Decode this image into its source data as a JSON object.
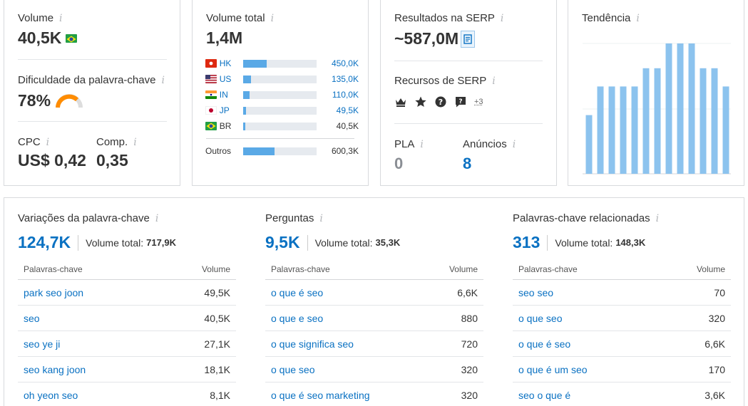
{
  "volume": {
    "label": "Volume",
    "value": "40,5K"
  },
  "kd": {
    "label": "Dificuldade da palavra-chave",
    "value": "78%"
  },
  "cpc": {
    "label": "CPC",
    "value": "US$ 0,42"
  },
  "comp": {
    "label": "Comp.",
    "value": "0,35"
  },
  "total": {
    "label": "Volume total",
    "value": "1,4M",
    "countries": [
      {
        "code": "HK",
        "value": "450,0K",
        "share": 0.32,
        "linked": true
      },
      {
        "code": "US",
        "value": "135,0K",
        "share": 0.1,
        "linked": true
      },
      {
        "code": "IN",
        "value": "110,0K",
        "share": 0.08,
        "linked": true
      },
      {
        "code": "JP",
        "value": "49,5K",
        "share": 0.035,
        "linked": true
      },
      {
        "code": "BR",
        "value": "40,5K",
        "share": 0.03,
        "linked": false
      }
    ],
    "others": {
      "label": "Outros",
      "value": "600,3K",
      "share": 0.43
    }
  },
  "serp": {
    "label": "Resultados na SERP",
    "value": "~587,0M",
    "features_label": "Recursos de SERP",
    "features_more": "+3",
    "pla_label": "PLA",
    "pla_value": "0",
    "ads_label": "Anúncios",
    "ads_value": "8"
  },
  "trend": {
    "label": "Tendência",
    "values": [
      0.45,
      0.67,
      0.67,
      0.67,
      0.67,
      0.81,
      0.81,
      1.0,
      1.0,
      1.0,
      0.81,
      0.81,
      0.67
    ]
  },
  "variations": {
    "title": "Variações da palavra-chave",
    "count": "124,7K",
    "total_label": "Volume total:",
    "total_value": "717,9K",
    "col_kw": "Palavras-chave",
    "col_vol": "Volume",
    "rows": [
      {
        "kw": "park seo joon",
        "vol": "49,5K"
      },
      {
        "kw": "seo",
        "vol": "40,5K"
      },
      {
        "kw": "seo ye ji",
        "vol": "27,1K"
      },
      {
        "kw": "seo kang joon",
        "vol": "18,1K"
      },
      {
        "kw": "oh yeon seo",
        "vol": "8,1K"
      }
    ]
  },
  "questions": {
    "title": "Perguntas",
    "count": "9,5K",
    "total_label": "Volume total:",
    "total_value": "35,3K",
    "col_kw": "Palavras-chave",
    "col_vol": "Volume",
    "rows": [
      {
        "kw": "o que é seo",
        "vol": "6,6K"
      },
      {
        "kw": "o que e seo",
        "vol": "880"
      },
      {
        "kw": "o que significa seo",
        "vol": "720"
      },
      {
        "kw": "o que seo",
        "vol": "320"
      },
      {
        "kw": "o que é seo marketing",
        "vol": "320"
      }
    ]
  },
  "related": {
    "title": "Palavras-chave relacionadas",
    "count": "313",
    "total_label": "Volume total:",
    "total_value": "148,3K",
    "col_kw": "Palavras-chave",
    "col_vol": "Volume",
    "rows": [
      {
        "kw": "seo seo",
        "vol": "70"
      },
      {
        "kw": "o que seo",
        "vol": "320"
      },
      {
        "kw": "o que é seo",
        "vol": "6,6K"
      },
      {
        "kw": "o que é um seo",
        "vol": "170"
      },
      {
        "kw": "seo o que é",
        "vol": "3,6K"
      }
    ]
  },
  "colors": {
    "accent": "#0a71c2",
    "bar": "#5aa9e6",
    "trend": "#8cc3ee",
    "kd": "#ff8c00"
  }
}
